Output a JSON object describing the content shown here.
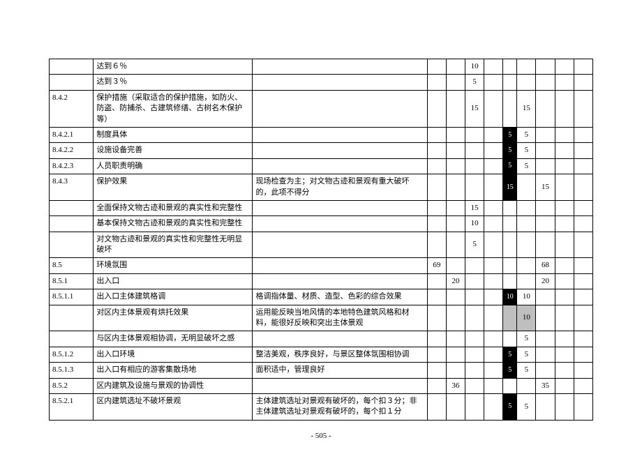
{
  "page_number": "- 505 -",
  "rows": [
    {
      "id": "",
      "desc": "达到６％",
      "note": "",
      "c1": "",
      "c2": "",
      "c3": "10",
      "c4": "",
      "blk": false,
      "c5": "",
      "c6": "",
      "c7": "",
      "c8": ""
    },
    {
      "id": "",
      "desc": "达到３％",
      "note": "",
      "c1": "",
      "c2": "",
      "c3": "5",
      "c4": "",
      "blk": false,
      "c5": "",
      "c6": "",
      "c7": "",
      "c8": ""
    },
    {
      "id": "8.4.2",
      "desc": "保护措施（采取适合的保护措施，如防火、防盗、防捕杀、古建筑修缮、古树名木保护等）",
      "note": "",
      "c1": "",
      "c2": "",
      "c3": "15",
      "c4": "",
      "blk": false,
      "c5": "15",
      "c6": "",
      "c7": "",
      "c8": ""
    },
    {
      "id": "8.4.2.1",
      "desc": "制度具体",
      "note": "",
      "c1": "",
      "c2": "",
      "c3": "",
      "c4": "",
      "blk": true,
      "blktxt": "5",
      "c5": "5",
      "c6": "",
      "c7": "",
      "c8": ""
    },
    {
      "id": "8.4.2.2",
      "desc": "设施设备完善",
      "note": "",
      "c1": "",
      "c2": "",
      "c3": "",
      "c4": "",
      "blk": true,
      "blktxt": "5",
      "c5": "5",
      "c6": "",
      "c7": "",
      "c8": ""
    },
    {
      "id": "8.4.2.3",
      "desc": "人员职责明确",
      "note": "",
      "c1": "",
      "c2": "",
      "c3": "",
      "c4": "",
      "blk": true,
      "blktxt": "5",
      "c5": "5",
      "c6": "",
      "c7": "",
      "c8": ""
    },
    {
      "id": "8.4.3",
      "desc": "保护效果",
      "note": "现场检查为主；对文物古迹和景观有重大破坏的，此项不得分",
      "c1": "",
      "c2": "",
      "c3": "",
      "c4": "",
      "blk": true,
      "blktxt": "15",
      "c5": "",
      "c6": "15",
      "c7": "",
      "c8": ""
    },
    {
      "id": "",
      "desc": "全面保持文物古迹和景观的真实性和完整性",
      "note": "",
      "c1": "",
      "c2": "",
      "c3": "15",
      "c4": "",
      "blk": false,
      "c5": "",
      "c6": "",
      "c7": "",
      "c8": ""
    },
    {
      "id": "",
      "desc": "基本保持文物古迹和景观的真实性和完整性",
      "note": "",
      "c1": "",
      "c2": "",
      "c3": "10",
      "c4": "",
      "blk": false,
      "c5": "",
      "c6": "",
      "c7": "",
      "c8": ""
    },
    {
      "id": "",
      "desc": "对文物古迹和景观的真实性和完整性无明显破坏",
      "note": "",
      "c1": "",
      "c2": "",
      "c3": "5",
      "c4": "",
      "blk": false,
      "c5": "",
      "c6": "",
      "c7": "",
      "c8": ""
    },
    {
      "id": "8.5",
      "desc": "环境氛围",
      "note": "",
      "c1": "69",
      "c2": "",
      "c3": "",
      "c4": "",
      "blk": false,
      "c5": "",
      "c6": "68",
      "c7": "",
      "c8": ""
    },
    {
      "id": "8.5.1",
      "desc": "出入口",
      "note": "",
      "c1": "",
      "c2": "20",
      "c3": "",
      "c4": "",
      "blk": false,
      "c5": "",
      "c6": "20",
      "c7": "",
      "c8": ""
    },
    {
      "id": "8.5.1.1",
      "desc": "出入口主体建筑格调",
      "note": "格调指体量、材质、造型、色彩的综合效果",
      "c1": "",
      "c2": "",
      "c3": "",
      "c4": "",
      "blk": true,
      "blktxt": "10",
      "c5": "10",
      "c6": "",
      "c7": "",
      "c8": ""
    },
    {
      "id": "",
      "desc": "对区内主体景观有烘托效果",
      "note": "运用能反映当地风情的本地特色建筑风格和材料，能很好反映和突出主体景观",
      "c1": "",
      "c2": "",
      "c3": "",
      "c4": "",
      "blk": false,
      "gray": true,
      "c5": "10",
      "c6": "",
      "c7": "",
      "c8": ""
    },
    {
      "id": "",
      "desc": "与区内主体景观相协调，无明显破坏之感",
      "note": "",
      "c1": "",
      "c2": "",
      "c3": "",
      "c4": "",
      "blk": false,
      "c5": "5",
      "c6": "",
      "c7": "",
      "c8": ""
    },
    {
      "id": "8.5.1.2",
      "desc": "出入口环境",
      "note": "整洁美观，秩序良好，与景区整体氛围相协调",
      "c1": "",
      "c2": "",
      "c3": "",
      "c4": "",
      "blk": true,
      "blktxt": "5",
      "c5": "5",
      "c6": "",
      "c7": "",
      "c8": ""
    },
    {
      "id": "8.5.1.3",
      "desc": "出入口有相应的游客集散场地",
      "note": "面积适中，管理良好",
      "c1": "",
      "c2": "",
      "c3": "",
      "c4": "",
      "blk": true,
      "blktxt": "5",
      "c5": "5",
      "c6": "",
      "c7": "",
      "c8": ""
    },
    {
      "id": "8.5.2",
      "desc": "区内建筑及设施与景观的协调性",
      "note": "",
      "c1": "",
      "c2": "36",
      "c3": "",
      "c4": "",
      "blk": false,
      "c5": "",
      "c6": "35",
      "c7": "",
      "c8": ""
    },
    {
      "id": "8.5.2.1",
      "desc": "区内建筑选址不破坏景观",
      "note": "主体建筑选址对景观有破坏的，每个扣３分；非主体建筑选址对景观有破坏的，每个扣１分",
      "c1": "",
      "c2": "",
      "c3": "",
      "c4": "",
      "blk": true,
      "blktxt": "5",
      "c5": "5",
      "c6": "",
      "c7": "",
      "c8": ""
    }
  ]
}
